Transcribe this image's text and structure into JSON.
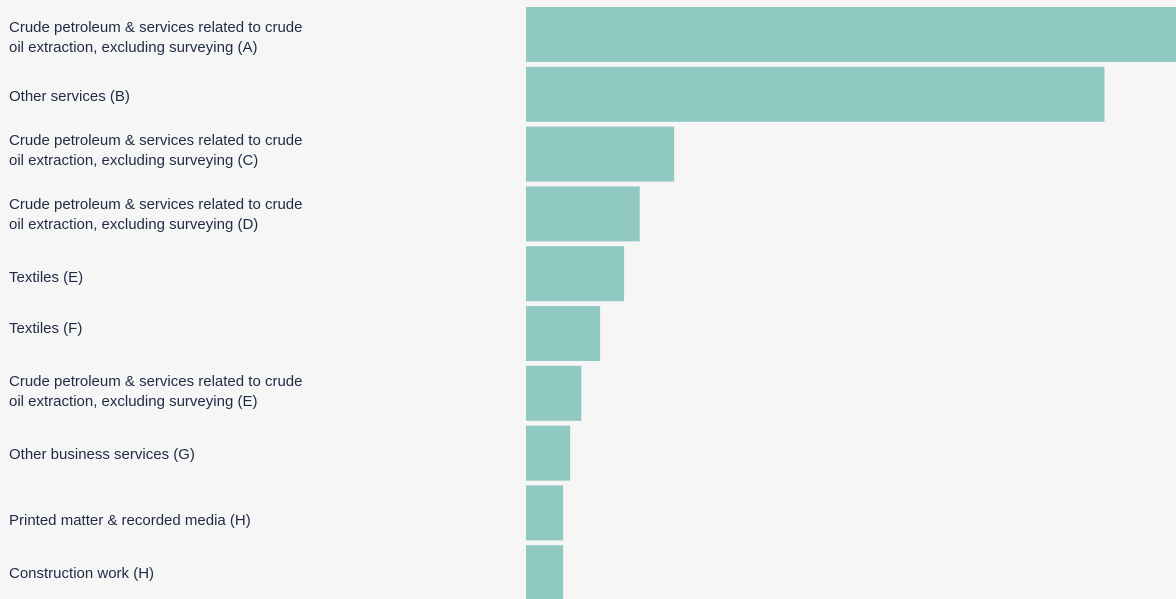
{
  "chart_data": {
    "type": "bar",
    "orientation": "horizontal",
    "bar_color": "#8fc9c2",
    "background": "#f6f6f6",
    "label_color": "#1f2a44",
    "title": "",
    "xlabel": "",
    "ylabel": "",
    "xlim": [
      0,
      100
    ],
    "grid": false,
    "legend": "none",
    "categories": [
      "Crude petroleum & services related to crude\noil extraction, excluding surveying (A)",
      "Other services (B)",
      "Crude petroleum & services related to crude\noil extraction, excluding surveying (C)",
      "Crude petroleum & services related to crude\noil extraction, excluding surveying (D)",
      "Textiles (E)",
      "Textiles (F)",
      "Crude petroleum & services related to crude\noil extraction, excluding surveying (E)",
      "Other business services (G)",
      "Printed matter & recorded media (H)",
      "Construction work (H)"
    ],
    "values": [
      100,
      89,
      22.8,
      17.5,
      15.1,
      11.4,
      8.5,
      6.8,
      5.7,
      5.7
    ]
  }
}
